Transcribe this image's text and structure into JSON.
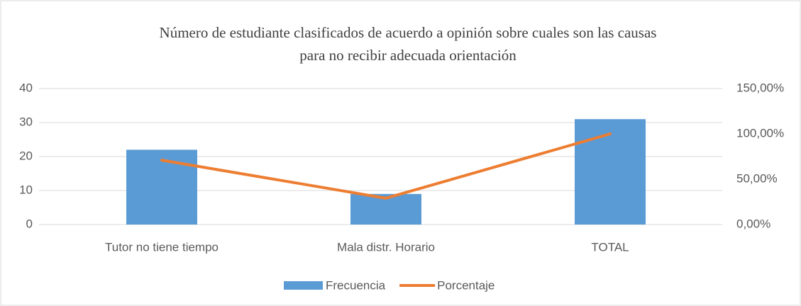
{
  "chart_data": {
    "type": "bar",
    "title": [
      "Número de estudiante clasificados de acuerdo a opinión sobre cuales son las causas",
      "para no recibir adecuada orientación"
    ],
    "categories": [
      "Tutor no tiene tiempo",
      "Mala distr. Horario",
      "TOTAL"
    ],
    "series": [
      {
        "name": "Frecuencia",
        "type": "bar",
        "color": "#5b9bd5",
        "values": [
          22,
          9,
          31
        ]
      },
      {
        "name": "Porcentaje",
        "type": "line",
        "axis": "y2",
        "color": "#ed7d31",
        "values": [
          70.97,
          29.03,
          100
        ]
      }
    ],
    "ylim": [
      0,
      40
    ],
    "yticks": [
      0,
      10,
      20,
      30,
      40
    ],
    "y2lim": [
      0,
      150
    ],
    "y2ticks": [
      {
        "value": 0,
        "label": "0,00%"
      },
      {
        "value": 50,
        "label": "50,00%"
      },
      {
        "value": 100,
        "label": "100,00%"
      },
      {
        "value": 150,
        "label": "150,00%"
      }
    ],
    "grid": true,
    "legend": "bottom"
  }
}
